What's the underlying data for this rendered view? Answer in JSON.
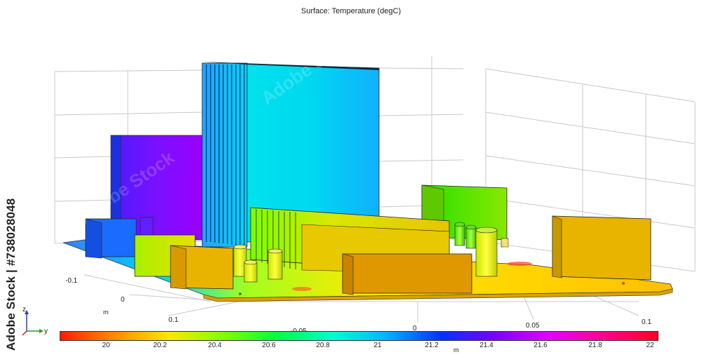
{
  "title": "Surface: Temperature (degC)",
  "axes": {
    "x_ticks": [
      "-0.05",
      "0",
      "0.05",
      "0.1"
    ],
    "y_ticks": [
      "-0.1",
      "0",
      "0.1"
    ],
    "unit_label": "m",
    "triad": {
      "z": "z",
      "y": "y"
    }
  },
  "colorbar": {
    "ticks": [
      "20",
      "20.2",
      "20.4",
      "20.6",
      "20.8",
      "21",
      "21.2",
      "21.4",
      "21.6",
      "21.8",
      "22"
    ],
    "unit": "m",
    "min": 19.9,
    "max": 22,
    "colors": [
      "#ff1e00",
      "#ff8c00",
      "#ffe600",
      "#7fff00",
      "#00ff40",
      "#00ffd0",
      "#00b4ff",
      "#0033ff",
      "#7a00ff",
      "#e000ff",
      "#ff0090",
      "#ff0020"
    ]
  },
  "watermark": {
    "side_text": "Adobe Stock | #738028048",
    "tile_text": "Adobe Stock"
  },
  "components": [
    {
      "name": "heat-sink-large",
      "temp": 21.05
    },
    {
      "name": "tall-block",
      "temp": 21.45
    },
    {
      "name": "small-cube",
      "temp": 21.25
    },
    {
      "name": "heat-sink-small",
      "temp": 20.6
    },
    {
      "name": "front-box-right",
      "temp": 20.15
    },
    {
      "name": "right-box",
      "temp": 20.2
    },
    {
      "name": "back-box",
      "temp": 20.55
    },
    {
      "name": "front-left-box",
      "temp": 20.25
    },
    {
      "name": "yellow-green-box",
      "temp": 20.4
    }
  ]
}
